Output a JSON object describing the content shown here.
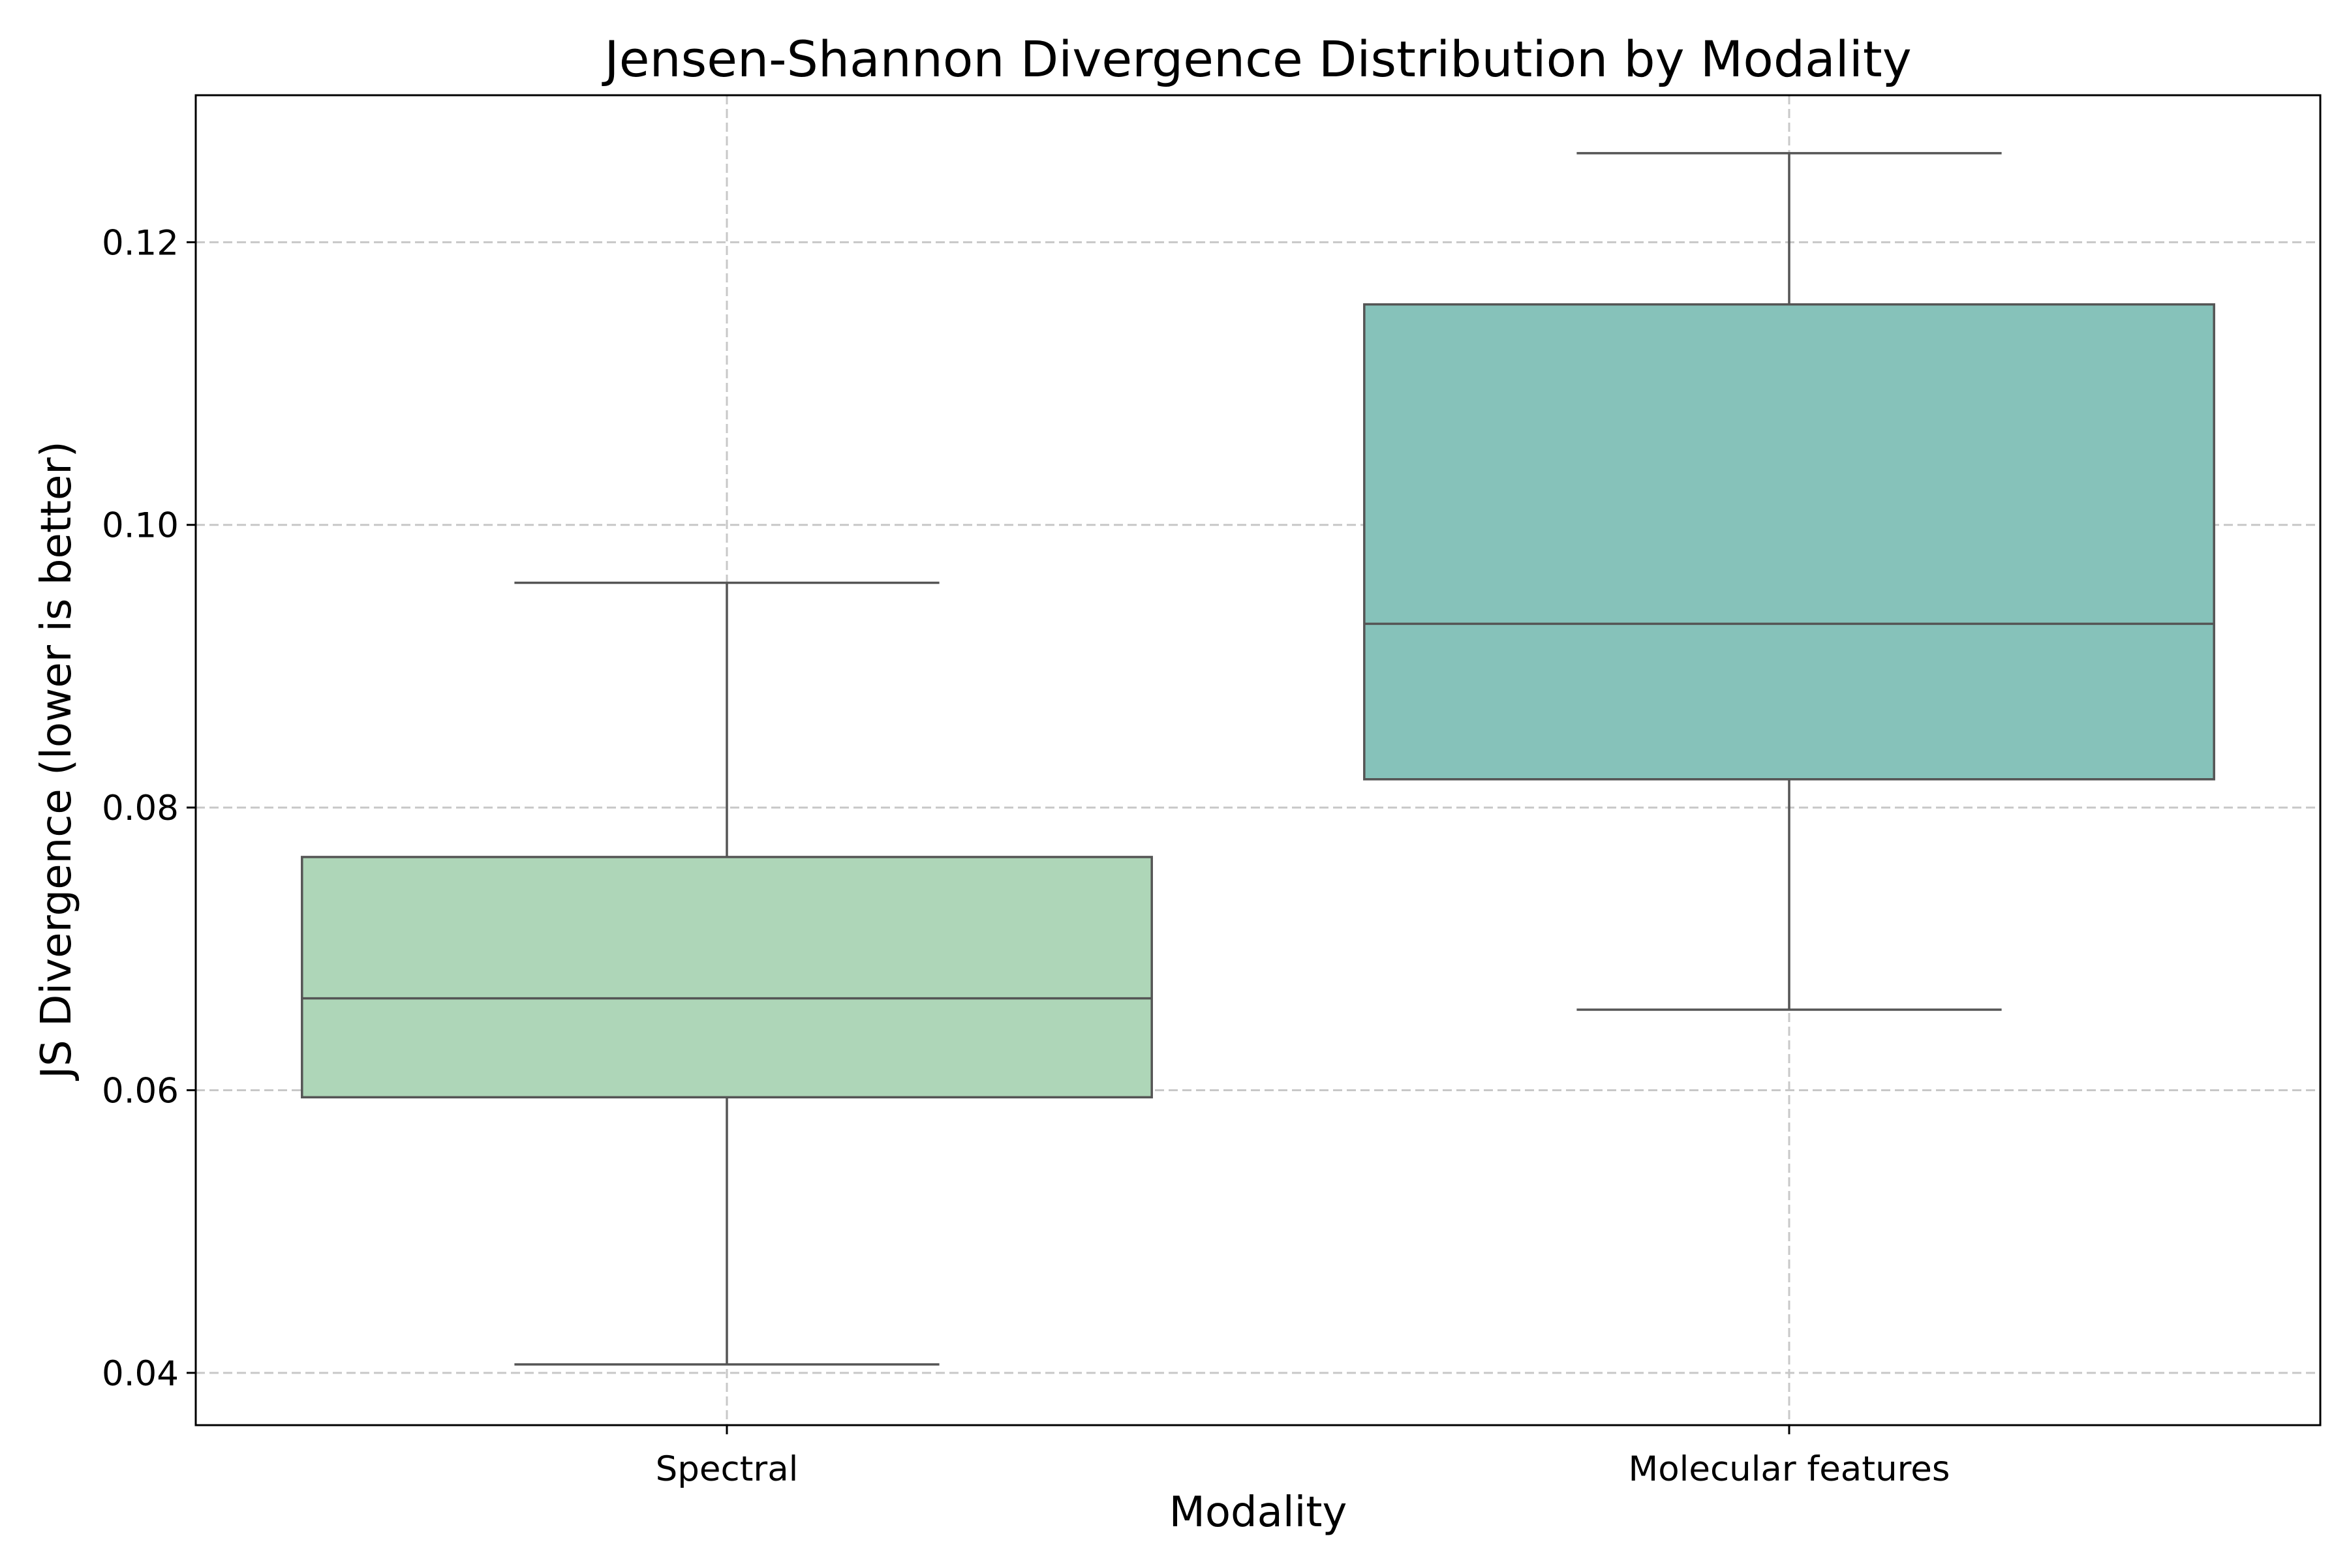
{
  "chart_data": {
    "type": "box",
    "title": "Jensen-Shannon Divergence Distribution by Modality",
    "xlabel": "Modality",
    "ylabel": "JS Divergence (lower is better)",
    "ylim": [
      0.0363,
      0.1304
    ],
    "yticks": [
      0.04,
      0.06,
      0.08,
      0.1,
      0.12
    ],
    "ytick_labels": [
      "0.04",
      "0.06",
      "0.08",
      "0.10",
      "0.12"
    ],
    "grid": true,
    "categories": [
      "Spectral",
      "Molecular features"
    ],
    "boxes": [
      {
        "category": "Spectral",
        "whisker_low": 0.0406,
        "q1": 0.0595,
        "median": 0.0665,
        "q3": 0.0765,
        "whisker_high": 0.0959,
        "color": "#aed6b8"
      },
      {
        "category": "Molecular features",
        "whisker_low": 0.0657,
        "q1": 0.082,
        "median": 0.093,
        "q3": 0.1156,
        "whisker_high": 0.1263,
        "color": "#86c2ba"
      }
    ]
  }
}
